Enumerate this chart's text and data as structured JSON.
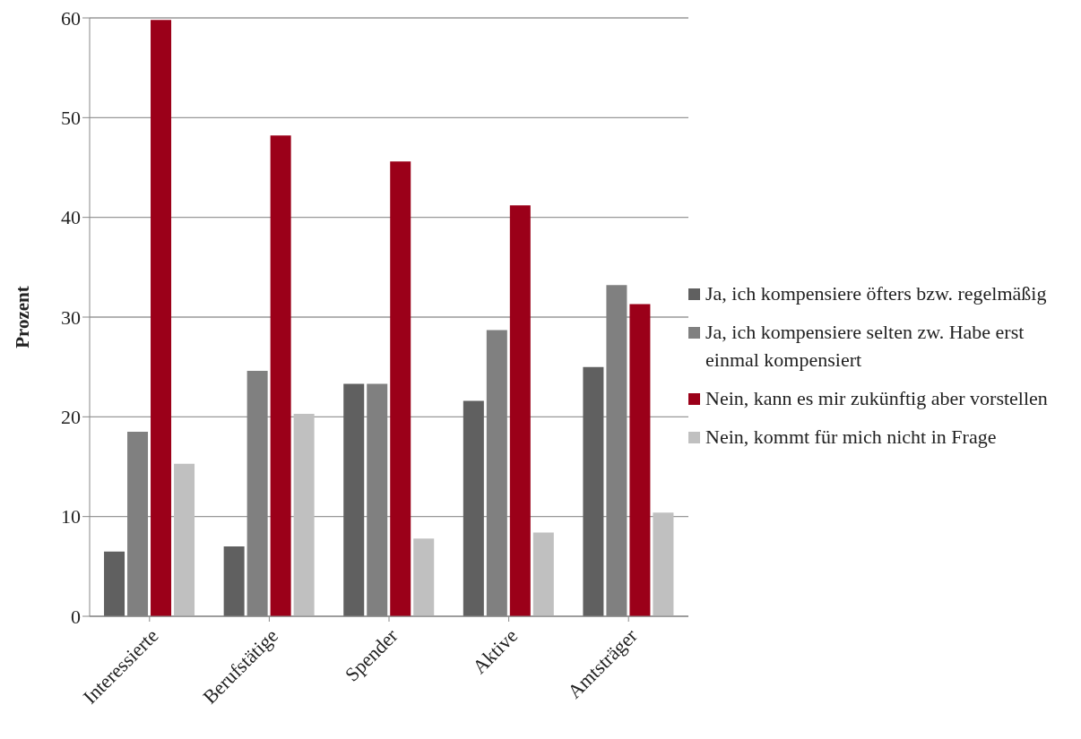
{
  "chart_data": {
    "type": "bar",
    "ylabel": "Prozent",
    "categories": [
      "Interessierte",
      "Berufstätige",
      "Spender",
      "Aktive",
      "Amtsträger"
    ],
    "series": [
      {
        "name": "Ja, ich kompensiere öfters bzw. regelmäßig",
        "color": "#606060",
        "values": [
          6.5,
          7.0,
          23.3,
          21.6,
          25.0
        ]
      },
      {
        "name": "Ja, ich kompensiere selten zw. Habe erst einmal kompensiert",
        "color": "#808080",
        "values": [
          18.5,
          24.6,
          23.3,
          28.7,
          33.2
        ]
      },
      {
        "name": "Nein, kann es mir zukünftig aber vorstellen",
        "color": "#9b0019",
        "values": [
          59.8,
          48.2,
          45.6,
          41.2,
          31.3
        ]
      },
      {
        "name": "Nein, kommt für mich nicht in Frage",
        "color": "#c0c0c0",
        "values": [
          15.3,
          20.3,
          7.8,
          8.4,
          10.4
        ]
      }
    ],
    "ylim": [
      0,
      60
    ],
    "yticks": [
      0,
      10,
      20,
      30,
      40,
      50,
      60
    ],
    "grid": "y",
    "legend": "right"
  }
}
